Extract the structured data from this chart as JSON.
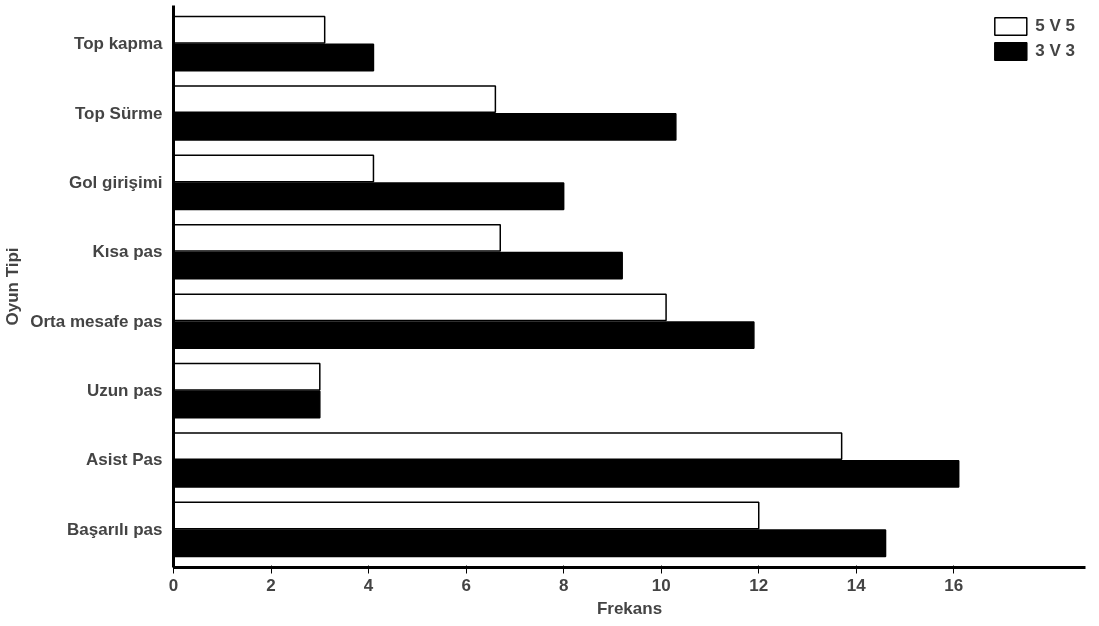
{
  "chart_data": {
    "type": "bar",
    "orientation": "horizontal",
    "xlabel": "Frekans",
    "ylabel": "Oyun Tipi",
    "categories": [
      "Top kapma",
      "Top Sürme",
      "Gol girişimi",
      "Kısa pas",
      "Orta mesafe pas",
      "Uzun pas",
      "Asist Pas",
      "Başarılı pas"
    ],
    "series": [
      {
        "name": "5 V 5",
        "color": "#ffffff",
        "values": [
          3.1,
          6.6,
          4.1,
          6.7,
          10.1,
          3.0,
          13.7,
          12.0
        ]
      },
      {
        "name": "3 V 3",
        "color": "#000000",
        "values": [
          4.1,
          10.3,
          8.0,
          9.2,
          11.9,
          3.0,
          16.1,
          14.6
        ]
      }
    ],
    "xlim": [
      0,
      18.7
    ],
    "xticks": [
      0,
      2,
      4,
      6,
      8,
      10,
      12,
      14,
      16
    ],
    "grid": false,
    "legend": "top right"
  }
}
